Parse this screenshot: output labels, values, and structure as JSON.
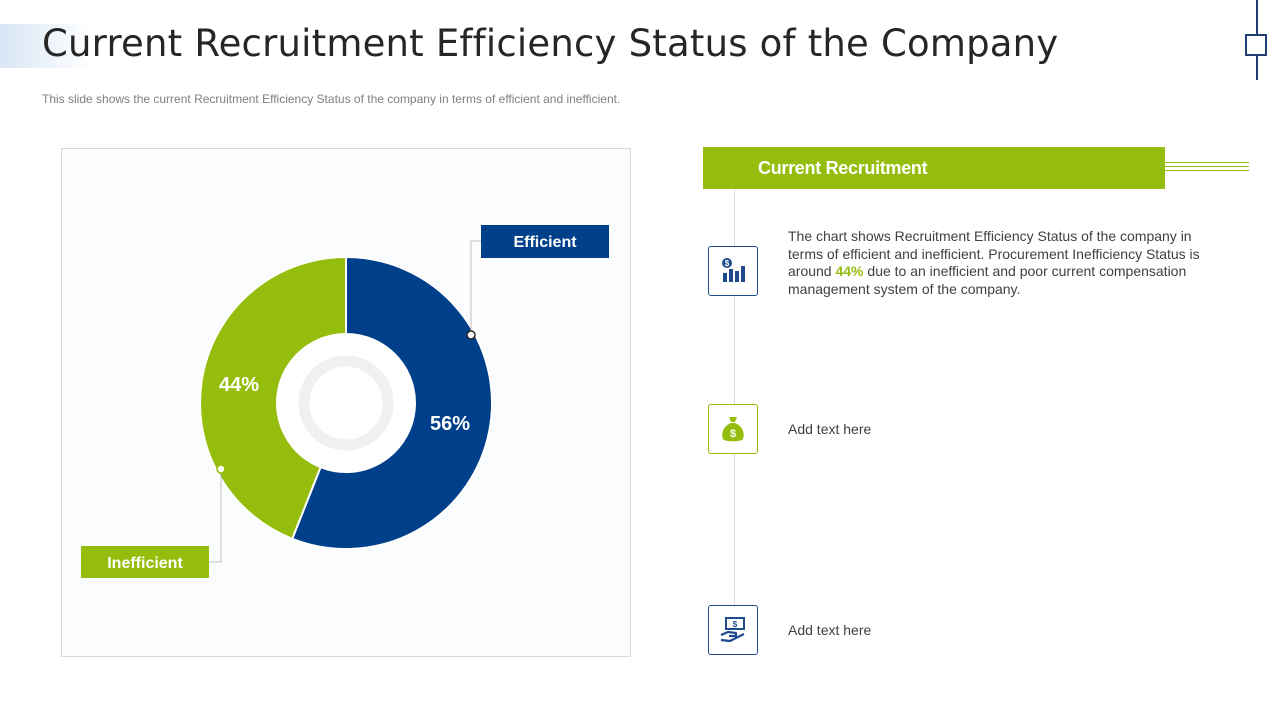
{
  "title": "Current Recruitment Efficiency Status of the Company",
  "subtitle": "This slide shows the current Recruitment Efficiency Status of the company in terms of efficient and inefficient.",
  "colors": {
    "efficient": "#003f8a",
    "inefficient": "#95bd0d",
    "accent_navy": "#1f4a8c"
  },
  "chart_data": {
    "type": "pie",
    "variant": "donut",
    "title": "",
    "slices": [
      {
        "name": "Efficient",
        "value": 56,
        "label": "56%",
        "color": "#003f8a"
      },
      {
        "name": "Inefficient",
        "value": 44,
        "label": "44%",
        "color": "#95bd0d"
      }
    ],
    "callouts": {
      "efficient": "Efficient",
      "inefficient": "Inefficient"
    }
  },
  "panel": {
    "header": "Current Recruitment",
    "items": [
      {
        "icon": "chart-dollar-icon",
        "text_before": "The chart shows Recruitment Efficiency Status of the company in terms of efficient and inefficient. Procurement Inefficiency Status is around ",
        "highlight": "44%",
        "text_after": " due to an inefficient and poor current compensation management system of the company."
      },
      {
        "icon": "money-bag-icon",
        "text": "Add text here"
      },
      {
        "icon": "hand-money-icon",
        "text": "Add text here"
      }
    ]
  }
}
